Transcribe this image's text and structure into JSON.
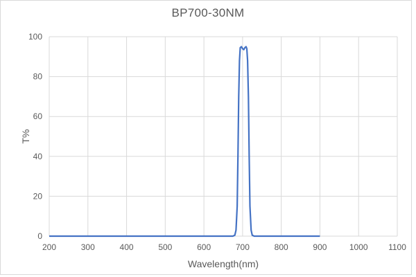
{
  "chart_data": {
    "type": "line",
    "title": "BP700-30NM",
    "xlabel": "Wavelength(nm)",
    "ylabel": "T%",
    "xlim": [
      200,
      1100
    ],
    "ylim": [
      0,
      100
    ],
    "x_ticks": [
      200,
      300,
      400,
      500,
      600,
      700,
      800,
      900,
      1000,
      1100
    ],
    "y_ticks": [
      0,
      20,
      40,
      60,
      80,
      100
    ],
    "grid": true,
    "legend": null,
    "series": [
      {
        "name": "BP700-30NM",
        "color": "#4472C4",
        "x": [
          200,
          300,
          400,
          500,
          600,
          650,
          675,
          680,
          683,
          686,
          688,
          690,
          692,
          694,
          697,
          700,
          703,
          706,
          709,
          711,
          713,
          715,
          717,
          719,
          722,
          725,
          730,
          750,
          800,
          850,
          900
        ],
        "y": [
          0,
          0,
          0,
          0,
          0,
          0,
          0,
          0.5,
          3,
          15,
          40,
          70,
          88,
          94.5,
          95,
          94,
          93.5,
          94.5,
          95,
          94,
          88,
          70,
          40,
          15,
          3,
          0.5,
          0,
          0,
          0,
          0,
          0
        ]
      }
    ]
  },
  "colors": {
    "line": "#4472C4",
    "grid": "#d9d9d9",
    "text": "#595959"
  }
}
